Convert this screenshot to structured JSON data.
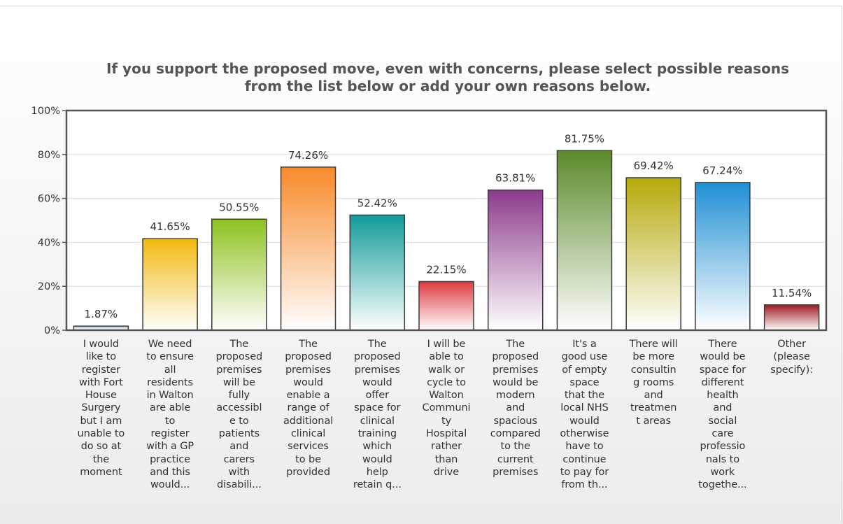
{
  "chart_data": {
    "type": "bar",
    "title": "If you support the proposed move, even with concerns, please select possible reasons\nfrom the list below or add your own reasons below.",
    "categories": [
      "I would\nlike to\nregister\nwith Fort\nHouse\nSurgery\nbut I am\nunable to\ndo so at\nthe\nmoment",
      "We need\nto ensure\nall\nresidents\nin Walton\nare able\nto\nregister\nwith a GP\npractice\nand this\nwould...",
      "The\nproposed\npremises\nwill be\nfully\naccessibl\ne to\npatients\nand\ncarers\nwith\ndisabili...",
      "The\nproposed\npremises\nwould\nenable a\nrange of\nadditional\nclinical\nservices\nto be\nprovided",
      "The\nproposed\npremises\nwould\noffer\nspace for\nclinical\ntraining\nwhich\nwould\nhelp\nretain q...",
      "I will be\nable to\nwalk or\ncycle to\nWalton\nCommuni\nty\nHospital\nrather\nthan\ndrive",
      "The\nproposed\npremises\nwould be\nmodern\nand\nspacious\ncompared\nto the\ncurrent\npremises",
      "It's a\ngood use\nof empty\nspace\nthat the\nlocal NHS\nwould\notherwise\nhave to\ncontinue\nto pay for\nfrom th...",
      "There will\nbe more\nconsultin\ng rooms\nand\ntreatmen\nt areas",
      "There\nwould be\nspace for\ndifferent\nhealth\nand\nsocial\ncare\nprofessio\nnals to\nwork\ntogethe...",
      "Other\n(please\nspecify):"
    ],
    "values": [
      1.87,
      41.65,
      50.55,
      74.26,
      52.42,
      22.15,
      63.81,
      81.75,
      69.42,
      67.24,
      11.54
    ],
    "value_labels": [
      "1.87%",
      "41.65%",
      "50.55%",
      "74.26%",
      "52.42%",
      "22.15%",
      "63.81%",
      "81.75%",
      "69.42%",
      "67.24%",
      "11.54%"
    ],
    "ylim": [
      0,
      100
    ],
    "yticks": [
      0,
      20,
      40,
      60,
      80,
      100
    ],
    "ytick_labels": [
      "0%",
      "20%",
      "40%",
      "60%",
      "80%",
      "100%"
    ],
    "grid": true,
    "legend": "none",
    "colors": [
      "#a9c4e4",
      "#f2b90f",
      "#8dc21f",
      "#f78a2a",
      "#119b9a",
      "#dc3a40",
      "#8c3a8c",
      "#5b8a2a",
      "#b5a90a",
      "#1f8fd4",
      "#9d1b20"
    ]
  }
}
